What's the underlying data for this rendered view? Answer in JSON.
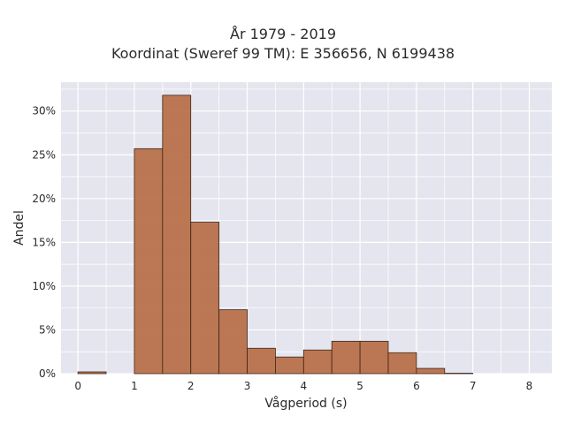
{
  "chart_data": {
    "type": "bar",
    "title": "År 1979 - 2019",
    "subtitle": "Koordinat (Sweref 99 TM): E 356656, N 6199438",
    "xlabel": "Vågperiod (s)",
    "ylabel": "Andel",
    "xlim": [
      -0.3,
      8.4
    ],
    "ylim": [
      0,
      33.3
    ],
    "x_ticks": [
      0,
      1,
      2,
      3,
      4,
      5,
      6,
      7,
      8
    ],
    "y_ticks": [
      0,
      5,
      10,
      15,
      20,
      25,
      30
    ],
    "y_tick_suffix": "%",
    "bin_width": 0.5,
    "bins": [
      {
        "start": 0.0,
        "value": 0.2
      },
      {
        "start": 0.5,
        "value": 0.0
      },
      {
        "start": 1.0,
        "value": 25.7
      },
      {
        "start": 1.5,
        "value": 31.8
      },
      {
        "start": 2.0,
        "value": 17.3
      },
      {
        "start": 2.5,
        "value": 7.3
      },
      {
        "start": 3.0,
        "value": 2.9
      },
      {
        "start": 3.5,
        "value": 1.9
      },
      {
        "start": 4.0,
        "value": 2.7
      },
      {
        "start": 4.5,
        "value": 3.7
      },
      {
        "start": 5.0,
        "value": 3.7
      },
      {
        "start": 5.5,
        "value": 2.4
      },
      {
        "start": 6.0,
        "value": 0.6
      },
      {
        "start": 6.5,
        "value": 0.05
      }
    ],
    "grid": true,
    "colors": {
      "bar_fill": "#b8714a",
      "bar_stroke": "#3d2418",
      "plot_bg": "#e5e5ef",
      "grid": "#ffffff"
    }
  }
}
